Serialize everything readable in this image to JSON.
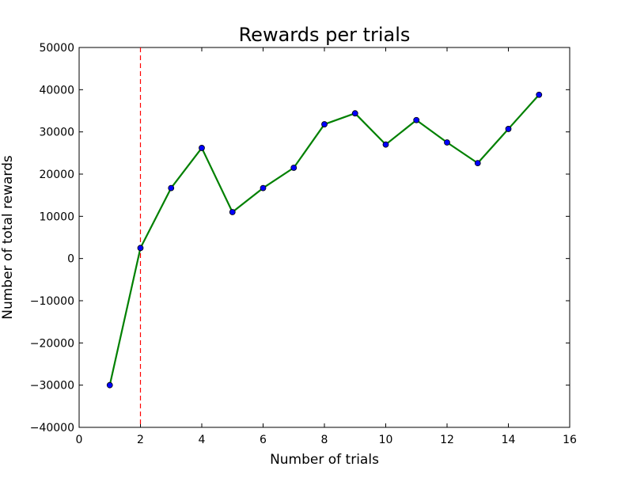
{
  "chart_data": {
    "type": "line",
    "title": "Rewards per trials",
    "xlabel": "Number of trials",
    "ylabel": "Number of total rewards",
    "xlim": [
      0,
      16
    ],
    "ylim": [
      -40000,
      50000
    ],
    "xticks": [
      0,
      2,
      4,
      6,
      8,
      10,
      12,
      14,
      16
    ],
    "yticks": [
      -40000,
      -30000,
      -20000,
      -10000,
      0,
      10000,
      20000,
      30000,
      40000,
      50000
    ],
    "grid": false,
    "x": [
      1,
      2,
      3,
      4,
      5,
      6,
      7,
      8,
      9,
      10,
      11,
      12,
      13,
      14,
      15
    ],
    "series": [
      {
        "values": [
          -30000,
          2500,
          16700,
          26200,
          11000,
          16700,
          21500,
          31800,
          34400,
          27000,
          32800,
          27500,
          22600,
          30700,
          38800
        ],
        "line_color": "#008000",
        "marker_color": "#0000ff"
      }
    ],
    "vline": {
      "x": 2,
      "color": "#ff0000",
      "style": "dashed"
    }
  }
}
